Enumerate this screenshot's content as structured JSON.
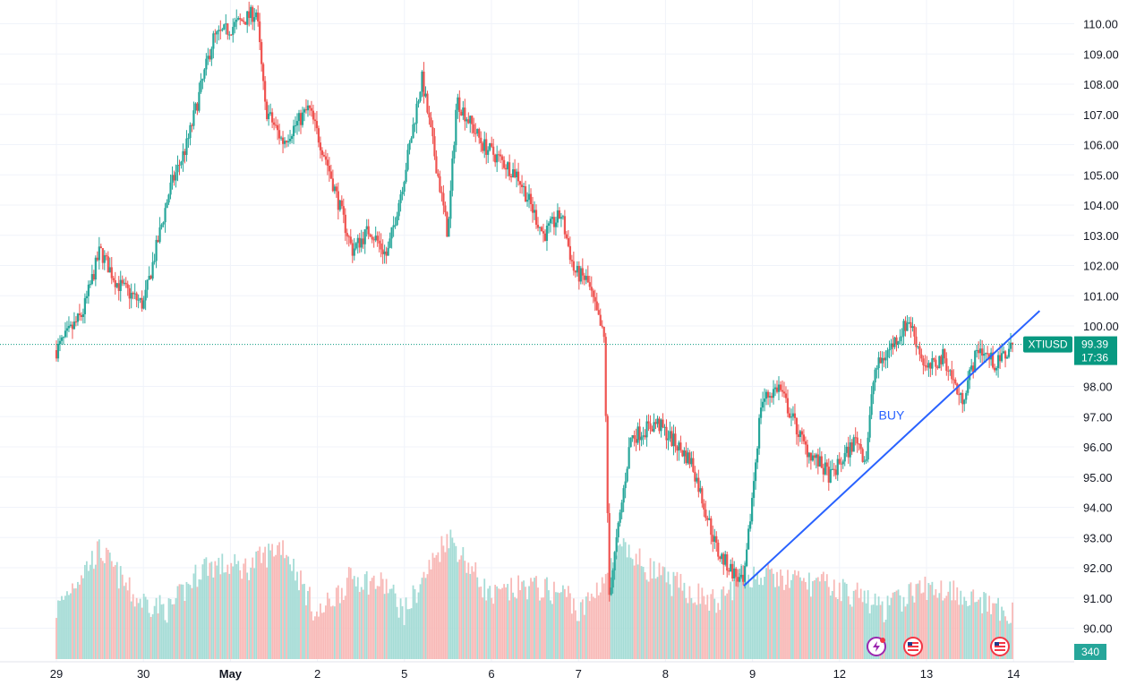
{
  "chart_data": {
    "type": "candlestick",
    "symbol": "XTIUSD",
    "last_price": "99.39",
    "countdown": "17:36",
    "volume_label": "340",
    "annotation": "BUY",
    "ylim": [
      89.5,
      110.8
    ],
    "y_ticks": [
      "110.00",
      "109.00",
      "108.00",
      "107.00",
      "106.00",
      "105.00",
      "104.00",
      "103.00",
      "102.00",
      "101.00",
      "100.00",
      "98.00",
      "97.00",
      "96.00",
      "95.00",
      "94.00",
      "93.00",
      "92.00",
      "91.00",
      "90.00"
    ],
    "x_labels": [
      "29",
      "30",
      "May",
      "2",
      "5",
      "6",
      "7",
      "8",
      "9",
      "12",
      "13",
      "14"
    ],
    "colors": {
      "up": "#26a69a",
      "down": "#ef5350",
      "up_volume": "#a5dcd6",
      "down_volume": "#f8b9b7",
      "trendline": "#2962ff",
      "price_tag": "#089981",
      "price_line": "#089981",
      "grid": "#f0f3fa",
      "text": "#131722"
    },
    "price_path": [
      [
        0,
        99.2
      ],
      [
        0.3,
        100.4
      ],
      [
        0.5,
        102.5
      ],
      [
        0.7,
        101.4
      ],
      [
        1.0,
        100.7
      ],
      [
        1.3,
        104.5
      ],
      [
        1.5,
        106.0
      ],
      [
        1.8,
        109.5
      ],
      [
        2.3,
        110.4
      ],
      [
        2.4,
        107.2
      ],
      [
        2.6,
        106.1
      ],
      [
        2.9,
        107.2
      ],
      [
        3.1,
        105.5
      ],
      [
        3.4,
        102.5
      ],
      [
        3.6,
        103.2
      ],
      [
        3.8,
        102.3
      ],
      [
        4.0,
        105.0
      ],
      [
        4.2,
        108.2
      ],
      [
        4.5,
        103.0
      ],
      [
        4.6,
        107.5
      ],
      [
        4.9,
        106.0
      ],
      [
        5.3,
        105.0
      ],
      [
        5.6,
        103.0
      ],
      [
        5.8,
        103.7
      ],
      [
        5.95,
        101.8
      ],
      [
        6.1,
        101.5
      ],
      [
        6.3,
        99.5
      ],
      [
        6.35,
        91.0
      ],
      [
        6.6,
        96.3
      ],
      [
        6.9,
        96.8
      ],
      [
        7.3,
        95.5
      ],
      [
        7.6,
        92.5
      ],
      [
        7.9,
        91.4
      ],
      [
        8.1,
        97.5
      ],
      [
        8.3,
        98.0
      ],
      [
        8.6,
        96.0
      ],
      [
        8.9,
        95.0
      ],
      [
        9.2,
        96.3
      ],
      [
        9.3,
        95.5
      ],
      [
        9.4,
        98.5
      ],
      [
        9.8,
        100.2
      ],
      [
        10.0,
        98.5
      ],
      [
        10.2,
        99.0
      ],
      [
        10.4,
        97.5
      ],
      [
        10.6,
        99.3
      ],
      [
        10.8,
        98.7
      ],
      [
        11.0,
        99.39
      ]
    ],
    "volume_profile": [
      [
        0,
        90.6
      ],
      [
        0.2,
        91.5
      ],
      [
        0.5,
        92.6
      ],
      [
        0.9,
        91.0
      ],
      [
        1.3,
        90.6
      ],
      [
        1.7,
        92.1
      ],
      [
        2.2,
        92.0
      ],
      [
        2.6,
        92.8
      ],
      [
        3.0,
        90.4
      ],
      [
        3.4,
        91.7
      ],
      [
        3.8,
        91.4
      ],
      [
        4.0,
        90.5
      ],
      [
        4.5,
        93.1
      ],
      [
        5.0,
        91.0
      ],
      [
        5.4,
        91.4
      ],
      [
        5.9,
        91.1
      ],
      [
        6.0,
        90.4
      ],
      [
        6.5,
        92.6
      ],
      [
        7.0,
        91.6
      ],
      [
        7.6,
        90.8
      ],
      [
        7.9,
        91.8
      ],
      [
        8.4,
        91.6
      ],
      [
        8.9,
        91.4
      ],
      [
        9.3,
        91.0
      ],
      [
        9.5,
        90.6
      ],
      [
        9.9,
        91.3
      ],
      [
        10.3,
        91.3
      ],
      [
        10.8,
        90.6
      ],
      [
        11.0,
        90.4
      ]
    ],
    "trendline": {
      "x": [
        7.9,
        11.3
      ],
      "y": [
        91.4,
        100.5
      ]
    },
    "current_price_value": 99.39
  }
}
